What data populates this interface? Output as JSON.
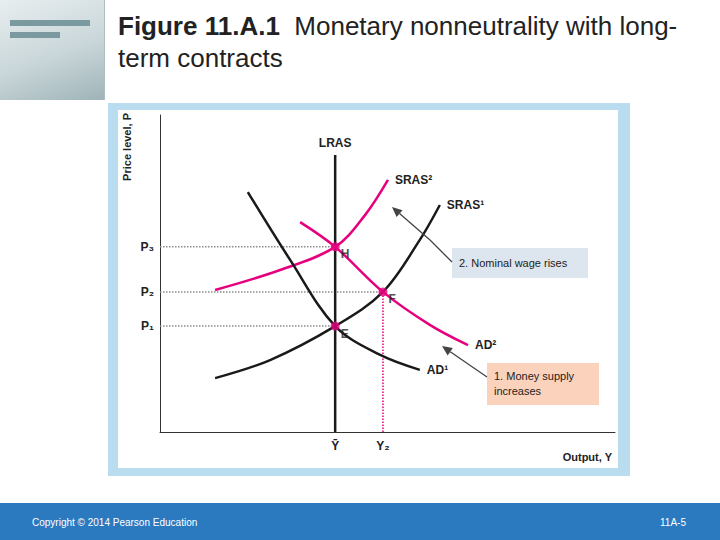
{
  "slide": {
    "figure_number": "Figure 11.A.1",
    "title": "Monetary nonneutrality with long-term contracts",
    "footer_left": "Copyright © 2014 Pearson Education",
    "footer_right": "11A-5"
  },
  "chart_data": {
    "type": "line",
    "xlabel": "Output, Y",
    "ylabel": "Price level, P",
    "xlim": [
      0,
      100
    ],
    "ylim": [
      0,
      100
    ],
    "xticks": [
      {
        "value": 38.5,
        "label": "Ȳ"
      },
      {
        "value": 49,
        "label": "Y₂"
      }
    ],
    "yticks": [
      {
        "value": 33.4,
        "label": "P₁"
      },
      {
        "value": 44.2,
        "label": "P₂"
      },
      {
        "value": 58.4,
        "label": "P₃"
      }
    ],
    "grid": false,
    "series": [
      {
        "type": "line",
        "line_style": "dotted",
        "color": "#8c8c8c",
        "x": [
          0,
          38.5
        ],
        "values": [
          58.4,
          58.4
        ]
      },
      {
        "type": "line",
        "line_style": "dotted",
        "color": "#8c8c8c",
        "x": [
          0,
          49
        ],
        "values": [
          44.2,
          44.2
        ]
      },
      {
        "type": "line",
        "line_style": "dotted",
        "color": "#8c8c8c",
        "x": [
          0,
          38.5
        ],
        "values": [
          33.4,
          33.4
        ]
      },
      {
        "type": "line",
        "line_style": "dotted",
        "color": "#e6007e",
        "x": [
          49,
          49
        ],
        "values": [
          0,
          44.2
        ]
      },
      {
        "name": "LRAS",
        "color": "#1a1a1a",
        "x": [
          38.5,
          38.5
        ],
        "values": [
          0,
          87.4
        ]
      },
      {
        "name": "SRAS¹",
        "color": "#1a1a1a",
        "x": [
          12.1,
          24.2,
          38.5,
          49,
          57.1,
          61.5
        ],
        "values": [
          17.0,
          22.7,
          33.4,
          44.2,
          60.6,
          71.6
        ]
      },
      {
        "name": "SRAS²",
        "color": "#e6007e",
        "x": [
          12.1,
          26.4,
          38.5,
          45.1,
          50.1
        ],
        "values": [
          44.8,
          51.1,
          58.4,
          68.5,
          79.5
        ]
      },
      {
        "name": "AD¹",
        "color": "#1a1a1a",
        "x": [
          19.3,
          28.6,
          38.5,
          48.4,
          57.1
        ],
        "values": [
          75.7,
          54.3,
          33.4,
          24.3,
          19.6
        ]
      },
      {
        "name": "AD²",
        "color": "#e6007e",
        "x": [
          30.8,
          38.5,
          49,
          59.3,
          67.7
        ],
        "values": [
          66.2,
          58.4,
          44.2,
          33.8,
          27.4
        ]
      },
      {
        "type": "scatter",
        "marker": "circle",
        "color": "#e6007e",
        "x": [
          38.5,
          49,
          38.5
        ],
        "values": [
          33.4,
          44.2,
          58.4
        ],
        "point_labels": [
          "E",
          "F",
          "H"
        ]
      }
    ],
    "annotations": [
      "1. Money supply increases",
      "2. Nominal wage rises"
    ]
  }
}
